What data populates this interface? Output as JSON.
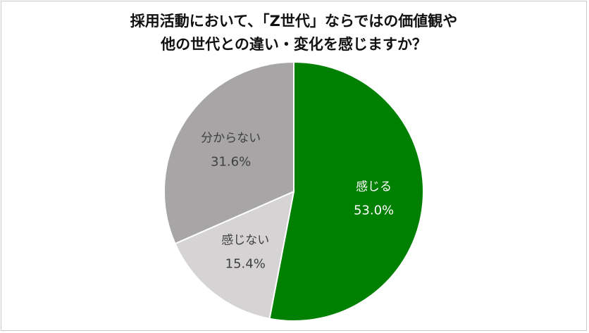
{
  "chart_data": {
    "type": "pie",
    "title": [
      "採用活動において、「Z世代」ならではの価値観や",
      "他の世代との違い・変化を感じますか？"
    ],
    "slices": [
      {
        "label": "感じる",
        "value": 53.0,
        "display": "53.0%",
        "color": "#008000",
        "text_color": "#ffffff"
      },
      {
        "label": "感じない",
        "value": 15.4,
        "display": "15.4%",
        "color": "#d6d3d4",
        "text_color": "#404040"
      },
      {
        "label": "分からない",
        "value": 31.6,
        "display": "31.6%",
        "color": "#a7a5a6",
        "text_color": "#404040"
      }
    ],
    "start_angle_deg": 0,
    "direction": "clockwise",
    "legend": "none"
  }
}
